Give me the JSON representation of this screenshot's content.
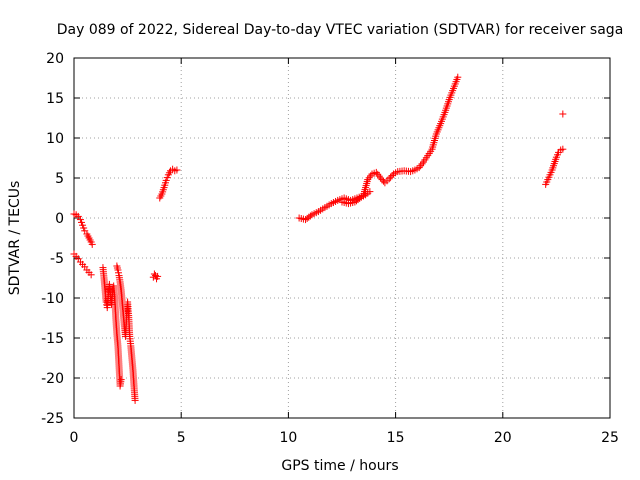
{
  "chart_data": {
    "type": "scatter",
    "title": "Day 089 of 2022, Sidereal Day-to-day VTEC variation (SDTVAR) for receiver saga",
    "xlabel": "GPS time / hours",
    "ylabel": "SDTVAR / TECUs",
    "xlim": [
      0,
      25
    ],
    "ylim": [
      -25,
      20
    ],
    "x_ticks": [
      0,
      5,
      10,
      15,
      20,
      25
    ],
    "y_ticks": [
      -25,
      -20,
      -15,
      -10,
      -5,
      0,
      5,
      10,
      15,
      20
    ],
    "grid": true,
    "marker": "+",
    "color": "#ff0000",
    "series": [
      {
        "name": "SDTVAR",
        "segments": [
          [
            [
              0.0,
              0.5
            ],
            [
              0.1,
              0.4
            ],
            [
              0.2,
              0.2
            ],
            [
              0.3,
              -0.2
            ],
            [
              0.4,
              -0.9
            ],
            [
              0.5,
              -1.6
            ],
            [
              0.6,
              -2.0
            ],
            [
              0.7,
              -2.5
            ],
            [
              0.8,
              -3.0
            ],
            [
              0.85,
              -3.3
            ]
          ],
          [
            [
              0.0,
              -4.5
            ],
            [
              0.1,
              -4.8
            ],
            [
              0.2,
              -5.1
            ],
            [
              0.3,
              -5.5
            ],
            [
              0.4,
              -5.8
            ],
            [
              0.5,
              -6.1
            ],
            [
              0.6,
              -6.5
            ],
            [
              0.7,
              -6.8
            ],
            [
              0.8,
              -7.1
            ]
          ],
          [
            [
              1.35,
              -6.2
            ],
            [
              1.4,
              -7.5
            ],
            [
              1.45,
              -9.0
            ],
            [
              1.5,
              -10.5
            ],
            [
              1.55,
              -11.2
            ],
            [
              1.6,
              -9.5
            ],
            [
              1.65,
              -8.3
            ],
            [
              1.7,
              -9.8
            ],
            [
              1.75,
              -10.8
            ],
            [
              1.8,
              -9.0
            ],
            [
              1.85,
              -8.5
            ],
            [
              1.9,
              -10.0
            ],
            [
              1.95,
              -12.5
            ],
            [
              2.0,
              -14.5
            ],
            [
              2.05,
              -16.0
            ],
            [
              2.1,
              -18.5
            ],
            [
              2.15,
              -21.0
            ],
            [
              2.2,
              -20.2
            ]
          ],
          [
            [
              2.0,
              -6.0
            ],
            [
              2.05,
              -6.5
            ],
            [
              2.1,
              -7.2
            ],
            [
              2.15,
              -8.0
            ],
            [
              2.2,
              -9.0
            ],
            [
              2.25,
              -10.5
            ],
            [
              2.3,
              -12.0
            ],
            [
              2.35,
              -13.5
            ],
            [
              2.4,
              -14.8
            ],
            [
              2.45,
              -12.5
            ],
            [
              2.5,
              -10.5
            ],
            [
              2.55,
              -12.2
            ],
            [
              2.6,
              -14.8
            ],
            [
              2.65,
              -16.0
            ],
            [
              2.7,
              -17.5
            ],
            [
              2.75,
              -19.0
            ],
            [
              2.8,
              -21.0
            ],
            [
              2.85,
              -22.8
            ]
          ],
          [
            [
              3.7,
              -7.4
            ],
            [
              3.75,
              -7.0
            ],
            [
              3.8,
              -7.2
            ],
            [
              3.85,
              -7.6
            ],
            [
              3.9,
              -7.3
            ]
          ],
          [
            [
              4.0,
              2.5
            ],
            [
              4.1,
              3.0
            ],
            [
              4.2,
              3.8
            ],
            [
              4.3,
              4.7
            ],
            [
              4.4,
              5.4
            ],
            [
              4.5,
              5.9
            ],
            [
              4.6,
              6.1
            ],
            [
              4.7,
              5.9
            ],
            [
              4.8,
              6.0
            ]
          ],
          [
            [
              10.5,
              0.0
            ],
            [
              10.8,
              -0.2
            ],
            [
              11.1,
              0.4
            ],
            [
              11.4,
              0.8
            ],
            [
              11.7,
              1.3
            ],
            [
              12.0,
              1.8
            ],
            [
              12.3,
              2.2
            ],
            [
              12.6,
              2.5
            ],
            [
              12.9,
              2.2
            ],
            [
              13.2,
              2.5
            ],
            [
              13.5,
              2.8
            ],
            [
              13.7,
              4.8
            ],
            [
              13.9,
              5.5
            ],
            [
              14.1,
              5.7
            ],
            [
              14.3,
              5.0
            ],
            [
              14.5,
              4.4
            ],
            [
              14.7,
              4.9
            ],
            [
              14.9,
              5.5
            ],
            [
              15.1,
              5.8
            ],
            [
              15.4,
              5.9
            ],
            [
              15.7,
              5.8
            ],
            [
              15.9,
              6.0
            ],
            [
              16.1,
              6.3
            ],
            [
              16.3,
              7.0
            ],
            [
              16.5,
              7.8
            ],
            [
              16.7,
              8.6
            ],
            [
              16.9,
              10.5
            ],
            [
              17.1,
              11.8
            ],
            [
              17.3,
              13.2
            ],
            [
              17.5,
              14.8
            ],
            [
              17.7,
              16.2
            ],
            [
              17.9,
              17.6
            ]
          ],
          [
            [
              12.5,
              2.0
            ],
            [
              12.8,
              1.8
            ],
            [
              13.1,
              2.0
            ],
            [
              13.4,
              2.6
            ],
            [
              13.6,
              2.9
            ],
            [
              13.8,
              3.3
            ]
          ],
          [
            [
              22.0,
              4.2
            ],
            [
              22.1,
              4.8
            ],
            [
              22.2,
              5.4
            ],
            [
              22.3,
              6.0
            ],
            [
              22.4,
              6.8
            ],
            [
              22.5,
              7.6
            ],
            [
              22.6,
              8.2
            ],
            [
              22.7,
              8.5
            ],
            [
              22.8,
              8.6
            ]
          ],
          [
            [
              22.8,
              13.0
            ]
          ]
        ]
      }
    ]
  }
}
